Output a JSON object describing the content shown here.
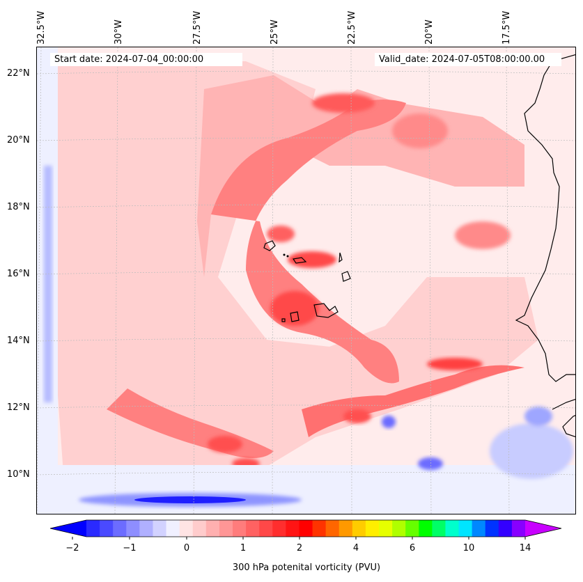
{
  "map": {
    "lon_labels": [
      "32.5°W",
      "30°W",
      "27.5°W",
      "25°W",
      "22.5°W",
      "20°W",
      "17.5°W"
    ],
    "lat_labels": [
      "22°N",
      "20°N",
      "18°N",
      "16°N",
      "14°N",
      "12°N",
      "10°N"
    ],
    "start_date": "Start date: 2024-07-04_00:00:00",
    "valid_date": "Valid_date: 2024-07-05T08:00:00.00",
    "colors": {
      "background_low": "#ffecec",
      "pink_mid": "#ffb4b4",
      "red_mid": "#ff7070",
      "red_strong": "#ff4040",
      "blue_light": "#e8eaff",
      "blue_mid": "#9ea6ff",
      "blue_strong": "#3a3aff"
    }
  },
  "colorbar": {
    "title": "300 hPa potenital vorticity (PVU)",
    "tick_labels": [
      "−2",
      "−1",
      "0",
      "1",
      "2",
      "4",
      "6",
      "10",
      "14"
    ],
    "colors": [
      "#0000ff",
      "#2a2aff",
      "#4a4aff",
      "#6c6cff",
      "#8e8eff",
      "#b0b0ff",
      "#d2d2ff",
      "#f0f0ff",
      "#ffe4e4",
      "#ffcccc",
      "#ffb0b0",
      "#ff9696",
      "#ff7c7c",
      "#ff6262",
      "#ff4848",
      "#ff2e2e",
      "#ff1414",
      "#ff0000",
      "#ff3300",
      "#ff6600",
      "#ff9900",
      "#ffcc00",
      "#ffee00",
      "#e6ff00",
      "#b0ff00",
      "#66ff00",
      "#00ff00",
      "#00ff66",
      "#00ffcc",
      "#00e5ff",
      "#0088ff",
      "#0033ff",
      "#3300ff",
      "#8800ff",
      "#c800ff"
    ]
  }
}
